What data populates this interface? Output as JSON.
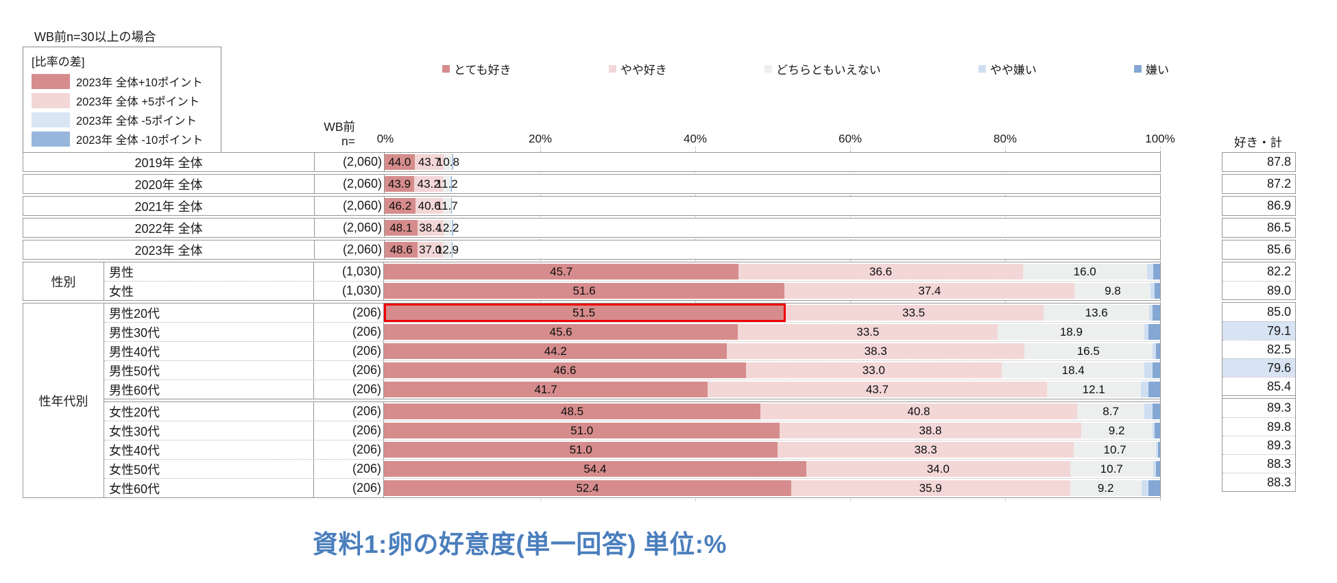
{
  "meta": {
    "wb_note": "WB前n=30以上の場合",
    "title": "資料1:卵の好意度(単一回答) 単位:%"
  },
  "diff_legend": {
    "title": "[比率の差]",
    "items": [
      {
        "label": "2023年 全体+10ポイント",
        "color": "#d68c8c"
      },
      {
        "label": "2023年 全体 +5ポイント",
        "color": "#f3d6d6"
      },
      {
        "label": "2023年 全体  -5ポイント",
        "color": "#d9e5f3"
      },
      {
        "label": "2023年 全体 -10ポイント",
        "color": "#97b6db"
      }
    ]
  },
  "axis": {
    "header_line1": "WB前",
    "header_line2": "n=",
    "sum_header": "好き・計"
  },
  "chart_data": {
    "type": "bar",
    "stacked": true,
    "orientation": "horizontal",
    "unit": "%",
    "xlim": [
      0,
      100
    ],
    "ticks": [
      "0%",
      "20%",
      "40%",
      "60%",
      "80%",
      "100%"
    ],
    "grid": "dashed-vertical",
    "series_labels": [
      "とても好き",
      "やや好き",
      "どちらともいえない",
      "やや嫌い",
      "嫌い"
    ],
    "series_colors": [
      "#d68c8c",
      "#f3d6d6",
      "#ecefee",
      "#cfdff2",
      "#85a7d3"
    ],
    "labeled_segments": 3,
    "sum_highlight_color": "#d8e3f3",
    "rows": [
      {
        "group": "",
        "label": "2019年 全体",
        "n": "(2,060)",
        "values": [
          44.0,
          43.7,
          10.8,
          0.8,
          0.7
        ],
        "sum": "87.8",
        "sum_highlight": false,
        "red_outline": false,
        "solid_divider_before": false
      },
      {
        "group": "",
        "label": "2020年 全体",
        "n": "(2,060)",
        "values": [
          43.9,
          43.2,
          11.2,
          0.8,
          0.9
        ],
        "sum": "87.2",
        "sum_highlight": false,
        "red_outline": false,
        "solid_divider_before": false
      },
      {
        "group": "",
        "label": "2021年 全体",
        "n": "(2,060)",
        "values": [
          46.2,
          40.6,
          11.7,
          0.7,
          0.8
        ],
        "sum": "86.9",
        "sum_highlight": false,
        "red_outline": false,
        "solid_divider_before": false
      },
      {
        "group": "",
        "label": "2022年 全体",
        "n": "(2,060)",
        "values": [
          48.1,
          38.4,
          12.2,
          0.6,
          0.7
        ],
        "sum": "86.5",
        "sum_highlight": false,
        "red_outline": false,
        "solid_divider_before": false
      },
      {
        "group": "",
        "label": "2023年 全体",
        "n": "(2,060)",
        "values": [
          48.6,
          37.0,
          12.9,
          0.7,
          0.8
        ],
        "sum": "85.6",
        "sum_highlight": false,
        "red_outline": false,
        "solid_divider_before": false
      },
      {
        "group": "性別",
        "label": "男性",
        "n": "(1,030)",
        "values": [
          45.7,
          36.6,
          16.0,
          0.8,
          0.9
        ],
        "sum": "82.2",
        "sum_highlight": false,
        "red_outline": false,
        "solid_divider_before": false
      },
      {
        "group": "性別",
        "label": "女性",
        "n": "(1,030)",
        "values": [
          51.6,
          37.4,
          9.8,
          0.5,
          0.7
        ],
        "sum": "89.0",
        "sum_highlight": false,
        "red_outline": false,
        "solid_divider_before": false
      },
      {
        "group": "性年代別",
        "label": "男性20代",
        "n": "(206)",
        "values": [
          51.5,
          33.5,
          13.6,
          0.4,
          1.0
        ],
        "sum": "85.0",
        "sum_highlight": false,
        "red_outline": true,
        "solid_divider_before": false
      },
      {
        "group": "性年代別",
        "label": "男性30代",
        "n": "(206)",
        "values": [
          45.6,
          33.5,
          18.9,
          0.5,
          1.5
        ],
        "sum": "79.1",
        "sum_highlight": true,
        "red_outline": false,
        "solid_divider_before": false
      },
      {
        "group": "性年代別",
        "label": "男性40代",
        "n": "(206)",
        "values": [
          44.2,
          38.3,
          16.5,
          0.5,
          0.5
        ],
        "sum": "82.5",
        "sum_highlight": false,
        "red_outline": false,
        "solid_divider_before": false
      },
      {
        "group": "性年代別",
        "label": "男性50代",
        "n": "(206)",
        "values": [
          46.6,
          33.0,
          18.4,
          1.0,
          1.0
        ],
        "sum": "79.6",
        "sum_highlight": true,
        "red_outline": false,
        "solid_divider_before": false
      },
      {
        "group": "性年代別",
        "label": "男性60代",
        "n": "(206)",
        "values": [
          41.7,
          43.7,
          12.1,
          1.0,
          1.5
        ],
        "sum": "85.4",
        "sum_highlight": false,
        "red_outline": false,
        "solid_divider_before": false
      },
      {
        "group": "性年代別",
        "label": "女性20代",
        "n": "(206)",
        "values": [
          48.5,
          40.8,
          8.7,
          1.0,
          1.0
        ],
        "sum": "89.3",
        "sum_highlight": false,
        "red_outline": false,
        "solid_divider_before": true
      },
      {
        "group": "性年代別",
        "label": "女性30代",
        "n": "(206)",
        "values": [
          51.0,
          38.8,
          9.2,
          0.3,
          0.7
        ],
        "sum": "89.8",
        "sum_highlight": false,
        "red_outline": false,
        "solid_divider_before": false
      },
      {
        "group": "性年代別",
        "label": "女性40代",
        "n": "(206)",
        "values": [
          51.0,
          38.3,
          10.7,
          0.2,
          0.3
        ],
        "sum": "89.3",
        "sum_highlight": false,
        "red_outline": false,
        "solid_divider_before": false
      },
      {
        "group": "性年代別",
        "label": "女性50代",
        "n": "(206)",
        "values": [
          54.4,
          34.0,
          10.7,
          0.4,
          0.5
        ],
        "sum": "88.3",
        "sum_highlight": false,
        "red_outline": false,
        "solid_divider_before": false
      },
      {
        "group": "性年代別",
        "label": "女性60代",
        "n": "(206)",
        "values": [
          52.4,
          35.9,
          9.2,
          0.9,
          1.5
        ],
        "sum": "88.3",
        "sum_highlight": false,
        "red_outline": false,
        "solid_divider_before": false
      }
    ]
  }
}
